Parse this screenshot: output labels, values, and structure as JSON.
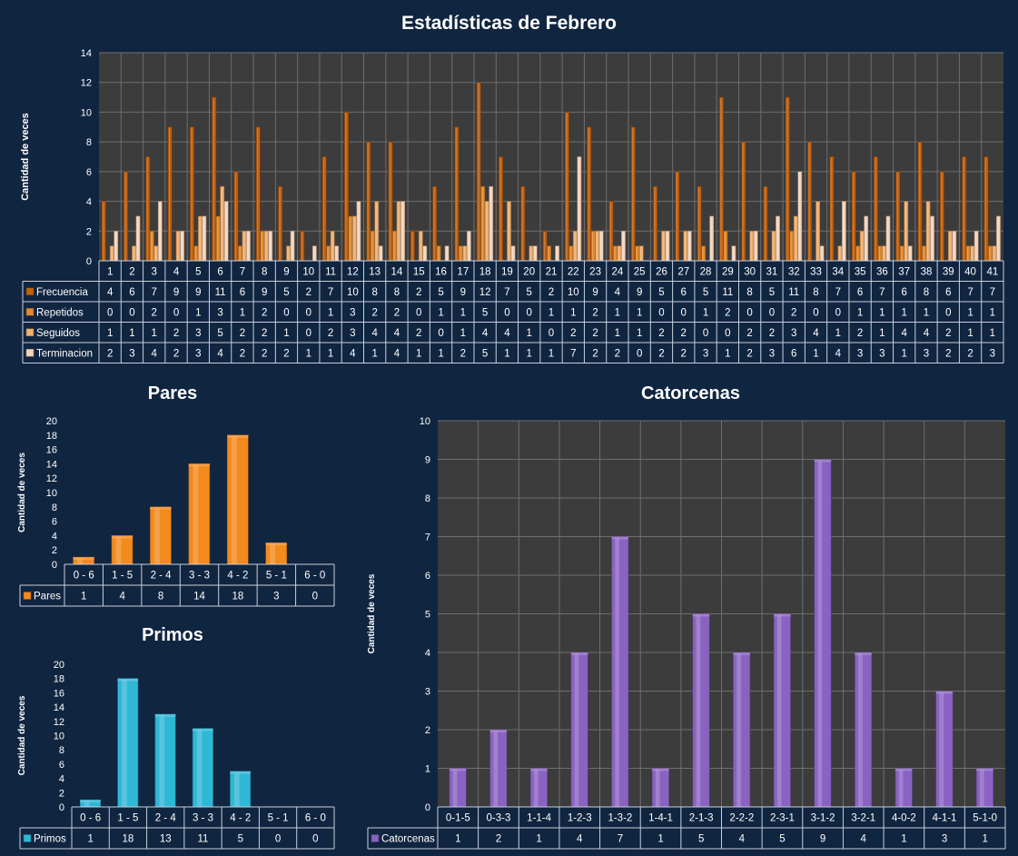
{
  "colors": {
    "background": "#102540",
    "plot_area": "#3c3c3c",
    "grid": "#6e6e6e",
    "frecuencia": "#c0600f",
    "repetidos": "#e08a2e",
    "seguidos": "#f0b070",
    "terminacion": "#f5d4bb",
    "pares": "#f28a1e",
    "primos": "#2fb7d6",
    "catorcenas": "#8a63c2"
  },
  "chart_data": [
    {
      "id": "febrero",
      "type": "bar",
      "title": "Estadísticas de Febrero",
      "xlabel": "",
      "ylabel": "Cantidad de veces",
      "ylim": [
        0,
        14
      ],
      "yticks": [
        0,
        2,
        4,
        6,
        8,
        10,
        12,
        14
      ],
      "grid": true,
      "legend": "data-table",
      "categories": [
        "1",
        "2",
        "3",
        "4",
        "5",
        "6",
        "7",
        "8",
        "9",
        "10",
        "11",
        "12",
        "13",
        "14",
        "15",
        "16",
        "17",
        "18",
        "19",
        "20",
        "21",
        "22",
        "23",
        "24",
        "25",
        "26",
        "27",
        "28",
        "29",
        "30",
        "31",
        "32",
        "33",
        "34",
        "35",
        "36",
        "37",
        "38",
        "39",
        "40",
        "41"
      ],
      "series": [
        {
          "name": "Frecuencia",
          "values": [
            4,
            6,
            7,
            9,
            9,
            11,
            6,
            9,
            5,
            2,
            7,
            10,
            8,
            8,
            2,
            5,
            9,
            12,
            7,
            5,
            2,
            10,
            9,
            4,
            9,
            5,
            6,
            5,
            11,
            8,
            5,
            11,
            8,
            7,
            6,
            7,
            6,
            8,
            6,
            7,
            7
          ]
        },
        {
          "name": "Repetidos",
          "values": [
            0,
            0,
            2,
            0,
            1,
            3,
            1,
            2,
            0,
            0,
            1,
            3,
            2,
            2,
            0,
            1,
            1,
            5,
            0,
            0,
            1,
            1,
            2,
            1,
            1,
            0,
            0,
            1,
            2,
            0,
            0,
            2,
            0,
            0,
            1,
            1,
            1,
            1,
            0,
            1,
            1
          ]
        },
        {
          "name": "Seguidos",
          "values": [
            1,
            1,
            1,
            2,
            3,
            5,
            2,
            2,
            1,
            0,
            2,
            3,
            4,
            4,
            2,
            0,
            1,
            4,
            4,
            1,
            0,
            2,
            2,
            1,
            1,
            2,
            2,
            0,
            0,
            2,
            2,
            3,
            4,
            1,
            2,
            1,
            4,
            4,
            2,
            1,
            1
          ]
        },
        {
          "name": "Terminacion",
          "values": [
            2,
            3,
            4,
            2,
            3,
            4,
            2,
            2,
            2,
            1,
            1,
            4,
            1,
            4,
            1,
            1,
            2,
            5,
            1,
            1,
            1,
            7,
            2,
            2,
            0,
            2,
            2,
            3,
            1,
            2,
            3,
            6,
            1,
            4,
            3,
            3,
            1,
            3,
            2,
            2,
            3
          ]
        }
      ]
    },
    {
      "id": "pares",
      "type": "bar",
      "title": "Pares",
      "xlabel": "",
      "ylabel": "Cantidad de veces",
      "ylim": [
        0,
        20
      ],
      "yticks": [
        0,
        2,
        4,
        6,
        8,
        10,
        12,
        14,
        16,
        18,
        20
      ],
      "grid": false,
      "legend": "data-table",
      "categories": [
        "0 - 6",
        "1 - 5",
        "2 - 4",
        "3 - 3",
        "4 - 2",
        "5 - 1",
        "6 - 0"
      ],
      "series": [
        {
          "name": "Pares",
          "values": [
            1,
            4,
            8,
            14,
            18,
            3,
            0
          ]
        }
      ]
    },
    {
      "id": "primos",
      "type": "bar",
      "title": "Primos",
      "xlabel": "",
      "ylabel": "Cantidad de veces",
      "ylim": [
        0,
        20
      ],
      "yticks": [
        0,
        2,
        4,
        6,
        8,
        10,
        12,
        14,
        16,
        18,
        20
      ],
      "grid": false,
      "legend": "data-table",
      "categories": [
        "0 - 6",
        "1 - 5",
        "2 - 4",
        "3 - 3",
        "4 - 2",
        "5 - 1",
        "6 - 0"
      ],
      "series": [
        {
          "name": "Primos",
          "values": [
            1,
            18,
            13,
            11,
            5,
            0,
            0
          ]
        }
      ]
    },
    {
      "id": "catorcenas",
      "type": "bar",
      "title": "Catorcenas",
      "xlabel": "",
      "ylabel": "Cantidad de veces",
      "ylim": [
        0,
        10
      ],
      "yticks": [
        0,
        1,
        2,
        3,
        4,
        5,
        6,
        7,
        8,
        9,
        10
      ],
      "grid": true,
      "legend": "data-table",
      "categories": [
        "0-1-5",
        "0-3-3",
        "1-1-4",
        "1-2-3",
        "1-3-2",
        "1-4-1",
        "2-1-3",
        "2-2-2",
        "2-3-1",
        "3-1-2",
        "3-2-1",
        "4-0-2",
        "4-1-1",
        "5-1-0"
      ],
      "series": [
        {
          "name": "Catorcenas",
          "values": [
            1,
            2,
            1,
            4,
            7,
            1,
            5,
            4,
            5,
            9,
            4,
            1,
            3,
            1
          ]
        }
      ]
    }
  ]
}
